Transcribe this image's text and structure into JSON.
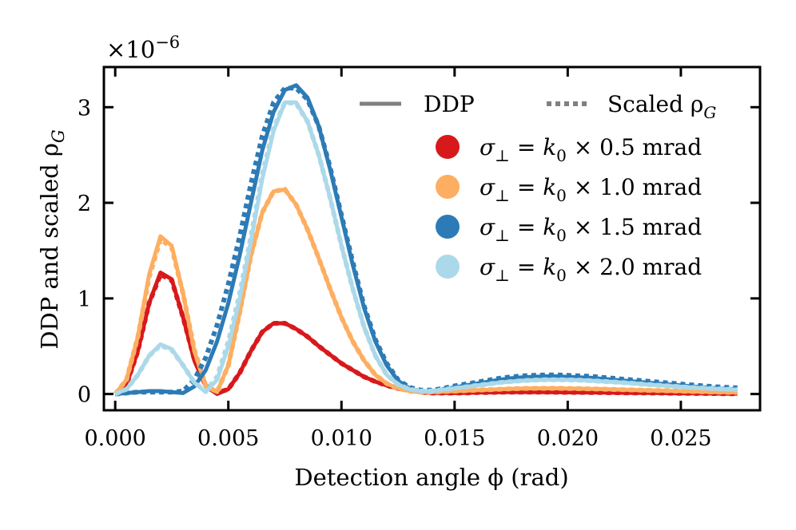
{
  "chart_data": {
    "type": "line",
    "xlabel": "Detection angle ϕ (rad)",
    "ylabel": "DDP and scaled ρ",
    "ylabel_sub": "G",
    "y_multiplier": {
      "base": "×10",
      "exponent": "−6"
    },
    "xlim": [
      -0.0005,
      0.0285
    ],
    "ylim": [
      -0.17,
      3.42
    ],
    "xticks": [
      0.0,
      0.005,
      0.01,
      0.015,
      0.02,
      0.025
    ],
    "xtick_labels": [
      "0.000",
      "0.005",
      "0.010",
      "0.015",
      "0.020",
      "0.025"
    ],
    "yticks": [
      0,
      1,
      2,
      3
    ],
    "ytick_labels": [
      "0",
      "1",
      "2",
      "3"
    ],
    "grid": false,
    "legend_placement": "top-right",
    "legend_style": {
      "ddp": {
        "label": "DDP",
        "line": "solid",
        "color": "#808080"
      },
      "scaled": {
        "label": "Scaled ρ",
        "label_sub": "G",
        "line": "dotted",
        "color": "#808080"
      }
    },
    "x": [
      0,
      0.0005,
      0.001,
      0.0015,
      0.002,
      0.0025,
      0.003,
      0.0035,
      0.004,
      0.0045,
      0.005,
      0.0055,
      0.006,
      0.0065,
      0.007,
      0.0075,
      0.008,
      0.0085,
      0.009,
      0.0095,
      0.01,
      0.0105,
      0.011,
      0.0115,
      0.012,
      0.0125,
      0.013,
      0.0135,
      0.014,
      0.0145,
      0.015,
      0.0155,
      0.016,
      0.0165,
      0.017,
      0.0175,
      0.018,
      0.0185,
      0.019,
      0.0195,
      0.02,
      0.0205,
      0.021,
      0.0215,
      0.022,
      0.0225,
      0.023,
      0.0235,
      0.024,
      0.0245,
      0.025,
      0.0255,
      0.026,
      0.0265,
      0.027,
      0.0275
    ],
    "series": [
      {
        "name": "σ⊥ = k0 × 0.5 mrad",
        "label": {
          "sigma": "σ",
          "sub": "⊥",
          "eq": " = ",
          "k": "k",
          "ksub": "0",
          "rest": " × 0.5 mrad"
        },
        "color": "#d7191c",
        "ddp": [
          0,
          0.1,
          0.45,
          0.95,
          1.27,
          1.2,
          0.8,
          0.35,
          0.08,
          0.0,
          0.05,
          0.22,
          0.45,
          0.65,
          0.74,
          0.74,
          0.68,
          0.6,
          0.5,
          0.41,
          0.32,
          0.25,
          0.18,
          0.13,
          0.09,
          0.06,
          0.04,
          0.02,
          0.01,
          0.01,
          0.01,
          0.012,
          0.015,
          0.017,
          0.019,
          0.02,
          0.02,
          0.02,
          0.02,
          0.019,
          0.018,
          0.017,
          0.016,
          0.015,
          0.014,
          0.013,
          0.012,
          0.011,
          0.01,
          0.009,
          0.008,
          0.007,
          0.006,
          0.005,
          0.004,
          0.004
        ],
        "scaled_rho": [
          0,
          0.1,
          0.45,
          0.95,
          1.25,
          1.19,
          0.8,
          0.36,
          0.09,
          0.01,
          0.05,
          0.22,
          0.45,
          0.65,
          0.74,
          0.74,
          0.68,
          0.6,
          0.5,
          0.41,
          0.32,
          0.25,
          0.18,
          0.13,
          0.09,
          0.06,
          0.04,
          0.02,
          0.01,
          0.01,
          0.01,
          0.012,
          0.015,
          0.017,
          0.019,
          0.02,
          0.02,
          0.02,
          0.02,
          0.019,
          0.018,
          0.017,
          0.016,
          0.015,
          0.014,
          0.013,
          0.012,
          0.011,
          0.01,
          0.009,
          0.008,
          0.007,
          0.006,
          0.005,
          0.004,
          0.004
        ]
      },
      {
        "name": "σ⊥ = k0 × 1.0 mrad",
        "label": {
          "sigma": "σ",
          "sub": "⊥",
          "eq": " = ",
          "k": "k",
          "ksub": "0",
          "rest": " × 1.0 mrad"
        },
        "color": "#fdae61",
        "ddp": [
          0,
          0.15,
          0.6,
          1.25,
          1.65,
          1.55,
          1.05,
          0.45,
          0.08,
          0.02,
          0.3,
          0.85,
          1.45,
          1.9,
          2.12,
          2.14,
          1.98,
          1.72,
          1.42,
          1.1,
          0.8,
          0.55,
          0.35,
          0.2,
          0.11,
          0.06,
          0.03,
          0.02,
          0.02,
          0.025,
          0.03,
          0.035,
          0.04,
          0.045,
          0.05,
          0.055,
          0.058,
          0.06,
          0.06,
          0.06,
          0.058,
          0.056,
          0.054,
          0.051,
          0.048,
          0.045,
          0.042,
          0.039,
          0.036,
          0.033,
          0.03,
          0.027,
          0.024,
          0.021,
          0.019,
          0.017
        ],
        "scaled_rho": [
          0,
          0.15,
          0.6,
          1.22,
          1.62,
          1.53,
          1.05,
          0.46,
          0.09,
          0.02,
          0.3,
          0.85,
          1.45,
          1.9,
          2.12,
          2.14,
          1.98,
          1.72,
          1.42,
          1.1,
          0.8,
          0.55,
          0.35,
          0.2,
          0.11,
          0.06,
          0.03,
          0.02,
          0.02,
          0.025,
          0.03,
          0.035,
          0.04,
          0.045,
          0.05,
          0.055,
          0.058,
          0.06,
          0.06,
          0.06,
          0.058,
          0.056,
          0.054,
          0.051,
          0.048,
          0.045,
          0.042,
          0.039,
          0.036,
          0.033,
          0.03,
          0.027,
          0.024,
          0.021,
          0.019,
          0.017
        ]
      },
      {
        "name": "σ⊥ = k0 × 1.5 mrad",
        "label": {
          "sigma": "σ",
          "sub": "⊥",
          "eq": " = ",
          "k": "k",
          "ksub": "0",
          "rest": " × 1.5 mrad"
        },
        "color": "#2c7bb6",
        "ddp": [
          0,
          0.01,
          0.02,
          0.03,
          0.03,
          0.02,
          0.01,
          0.08,
          0.25,
          0.55,
          0.95,
          1.45,
          2.0,
          2.55,
          2.95,
          3.18,
          3.23,
          3.1,
          2.8,
          2.35,
          1.85,
          1.35,
          0.9,
          0.55,
          0.3,
          0.14,
          0.06,
          0.03,
          0.03,
          0.05,
          0.07,
          0.09,
          0.11,
          0.13,
          0.15,
          0.165,
          0.175,
          0.18,
          0.185,
          0.185,
          0.18,
          0.175,
          0.17,
          0.16,
          0.15,
          0.14,
          0.13,
          0.12,
          0.11,
          0.1,
          0.09,
          0.08,
          0.07,
          0.062,
          0.055,
          0.05
        ],
        "scaled_rho": [
          0,
          0.01,
          0.02,
          0.02,
          0.02,
          0.02,
          0.03,
          0.15,
          0.38,
          0.72,
          1.15,
          1.65,
          2.2,
          2.7,
          3.05,
          3.2,
          3.2,
          3.08,
          2.8,
          2.37,
          1.87,
          1.38,
          0.92,
          0.57,
          0.32,
          0.15,
          0.07,
          0.04,
          0.04,
          0.06,
          0.085,
          0.105,
          0.125,
          0.145,
          0.165,
          0.18,
          0.19,
          0.195,
          0.2,
          0.2,
          0.195,
          0.19,
          0.185,
          0.175,
          0.165,
          0.155,
          0.145,
          0.135,
          0.125,
          0.115,
          0.105,
          0.095,
          0.085,
          0.077,
          0.07,
          0.065
        ]
      },
      {
        "name": "σ⊥ = k0 × 2.0 mrad",
        "label": {
          "sigma": "σ",
          "sub": "⊥",
          "eq": " = ",
          "k": "k",
          "ksub": "0",
          "rest": " × 2.0 mrad"
        },
        "color": "#abd9e9",
        "ddp": [
          0,
          0.05,
          0.2,
          0.4,
          0.52,
          0.47,
          0.3,
          0.12,
          0.02,
          0.15,
          0.5,
          1.0,
          1.6,
          2.25,
          2.75,
          3.05,
          3.05,
          2.85,
          2.5,
          2.05,
          1.55,
          1.1,
          0.7,
          0.4,
          0.2,
          0.1,
          0.05,
          0.03,
          0.03,
          0.045,
          0.06,
          0.075,
          0.09,
          0.105,
          0.12,
          0.13,
          0.14,
          0.145,
          0.15,
          0.15,
          0.148,
          0.145,
          0.14,
          0.133,
          0.126,
          0.118,
          0.11,
          0.1,
          0.092,
          0.084,
          0.076,
          0.068,
          0.061,
          0.055,
          0.05,
          0.045
        ],
        "scaled_rho": [
          0,
          0.05,
          0.2,
          0.4,
          0.51,
          0.46,
          0.3,
          0.12,
          0.03,
          0.18,
          0.55,
          1.05,
          1.65,
          2.3,
          2.78,
          3.05,
          3.04,
          2.85,
          2.5,
          2.05,
          1.55,
          1.1,
          0.7,
          0.4,
          0.2,
          0.1,
          0.05,
          0.03,
          0.03,
          0.045,
          0.06,
          0.075,
          0.09,
          0.105,
          0.12,
          0.13,
          0.14,
          0.145,
          0.15,
          0.15,
          0.148,
          0.145,
          0.14,
          0.133,
          0.126,
          0.118,
          0.11,
          0.1,
          0.092,
          0.084,
          0.076,
          0.068,
          0.061,
          0.055,
          0.05,
          0.045
        ]
      }
    ]
  }
}
